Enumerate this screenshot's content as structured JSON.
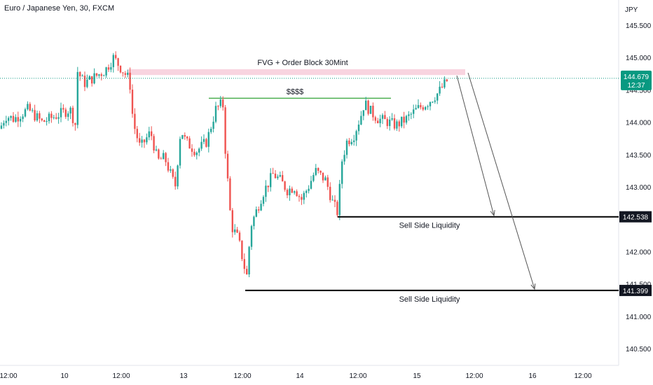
{
  "header": {
    "title": "Euro / Japanese Yen, 30, FXCM"
  },
  "colors": {
    "up": "#26a69a",
    "down": "#ef5350",
    "current": "#089981",
    "zone": "#f8d4e0",
    "level_line": "#4caf50",
    "liquidity": "#000000"
  },
  "chart_data": {
    "type": "candlestick",
    "title": "Euro / Japanese Yen, 30, FXCM",
    "y_unit": "JPY",
    "yticks": [
      "145.500",
      "145.000",
      "144.500",
      "144.000",
      "143.500",
      "143.000",
      "142.500",
      "142.000",
      "141.500",
      "141.000",
      "140.500"
    ],
    "ylim": [
      140.35,
      145.85
    ],
    "xticks": [
      "12:00",
      "10",
      "12:00",
      "13",
      "12:00",
      "14",
      "12:00",
      "15",
      "12:00",
      "16",
      "12:00"
    ],
    "current_price": {
      "value": "144.679",
      "countdown": "12:37"
    },
    "levels": [
      {
        "value": "142.538",
        "label": "Sell Side Liquidity"
      },
      {
        "value": "141.399",
        "label": "Sell Side Liquidity"
      }
    ],
    "zone": {
      "label": "FVG + Order Block 30Mint",
      "top": 144.82,
      "bottom": 144.73
    },
    "resistance": {
      "label": "$$$$",
      "value": 144.37
    },
    "series_keypoints": [
      [
        0,
        143.9
      ],
      [
        8,
        144.1
      ],
      [
        20,
        144.05
      ],
      [
        40,
        144.2
      ],
      [
        60,
        144.0
      ],
      [
        80,
        144.1
      ],
      [
        100,
        144.2
      ],
      [
        108,
        143.95
      ],
      [
        110,
        144.8
      ],
      [
        120,
        144.6
      ],
      [
        135,
        144.7
      ],
      [
        150,
        144.8
      ],
      [
        162,
        145.0
      ],
      [
        175,
        144.8
      ],
      [
        185,
        144.65
      ],
      [
        190,
        144.0
      ],
      [
        200,
        143.6
      ],
      [
        215,
        143.85
      ],
      [
        225,
        143.4
      ],
      [
        235,
        143.45
      ],
      [
        250,
        143.0
      ],
      [
        258,
        143.9
      ],
      [
        265,
        143.7
      ],
      [
        280,
        143.55
      ],
      [
        295,
        143.7
      ],
      [
        308,
        144.2
      ],
      [
        318,
        144.3
      ],
      [
        322,
        143.5
      ],
      [
        330,
        142.4
      ],
      [
        340,
        142.2
      ],
      [
        348,
        141.8
      ],
      [
        352,
        141.6
      ],
      [
        358,
        142.4
      ],
      [
        365,
        142.6
      ],
      [
        375,
        142.9
      ],
      [
        390,
        143.2
      ],
      [
        400,
        143.1
      ],
      [
        410,
        142.95
      ],
      [
        420,
        143.0
      ],
      [
        430,
        142.8
      ],
      [
        440,
        143.0
      ],
      [
        450,
        143.25
      ],
      [
        465,
        143.1
      ],
      [
        475,
        142.75
      ],
      [
        482,
        142.6
      ],
      [
        488,
        143.4
      ],
      [
        495,
        143.7
      ],
      [
        505,
        143.8
      ],
      [
        515,
        144.1
      ],
      [
        520,
        144.3
      ],
      [
        530,
        144.15
      ],
      [
        540,
        144.05
      ],
      [
        555,
        144.0
      ],
      [
        565,
        143.95
      ],
      [
        580,
        144.05
      ],
      [
        595,
        144.2
      ],
      [
        610,
        144.3
      ],
      [
        625,
        144.45
      ],
      [
        640,
        144.67
      ]
    ]
  }
}
